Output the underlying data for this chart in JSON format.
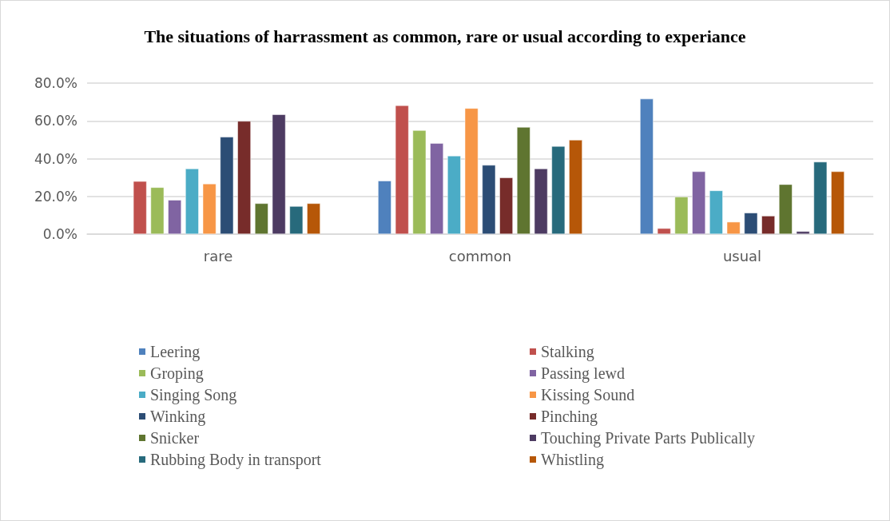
{
  "chart_data": {
    "type": "bar",
    "title": "The situations of harrassment as common, rare or usual according to experiance",
    "categories": [
      "rare",
      "common",
      "usual"
    ],
    "series": [
      {
        "name": "Leering",
        "color": "#4f81bd",
        "values": [
          null,
          28.3,
          71.7
        ]
      },
      {
        "name": "Stalking",
        "color": "#c0504d",
        "values": [
          28.0,
          68.2,
          3.1
        ]
      },
      {
        "name": "Groping",
        "color": "#9bbb59",
        "values": [
          24.8,
          55.0,
          19.8
        ]
      },
      {
        "name": "Passing lewd",
        "color": "#8064a2",
        "values": [
          18.1,
          48.2,
          33.2
        ]
      },
      {
        "name": "Singing Song",
        "color": "#4bacc6",
        "values": [
          34.7,
          41.5,
          23.1
        ]
      },
      {
        "name": "Kissing Sound",
        "color": "#f79646",
        "values": [
          26.7,
          66.7,
          6.5
        ]
      },
      {
        "name": "Winking",
        "color": "#2c4d75",
        "values": [
          51.5,
          36.6,
          11.3
        ]
      },
      {
        "name": "Pinching",
        "color": "#772c2a",
        "values": [
          59.9,
          30.0,
          9.7
        ]
      },
      {
        "name": "Snicker",
        "color": "#5f7530",
        "values": [
          16.3,
          56.7,
          26.4
        ]
      },
      {
        "name": "Touching Private Parts Publically",
        "color": "#4d3b62",
        "values": [
          63.4,
          34.7,
          1.5
        ]
      },
      {
        "name": "Rubbing Body in transport",
        "color": "#276a7c",
        "values": [
          14.8,
          46.6,
          38.3
        ]
      },
      {
        "name": "Whistling",
        "color": "#b65708",
        "values": [
          16.3,
          49.9,
          33.2
        ]
      }
    ],
    "ylim": [
      0,
      80
    ],
    "yticks": [
      {
        "value": 0,
        "label": "0.0%"
      },
      {
        "value": 20,
        "label": "20.0%"
      },
      {
        "value": 40,
        "label": "40.0%"
      },
      {
        "value": 60,
        "label": "60.0%"
      },
      {
        "value": 80,
        "label": "80.0%"
      }
    ],
    "grid": "y",
    "legend": "bottom"
  }
}
